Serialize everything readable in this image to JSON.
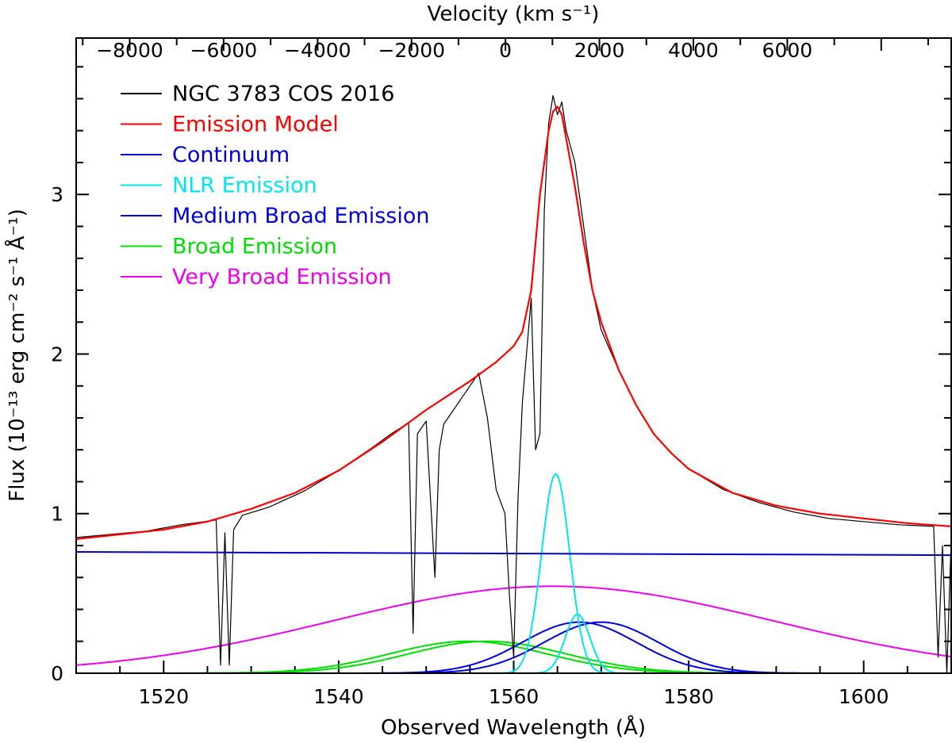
{
  "chart_data": {
    "type": "line",
    "title": "",
    "xlabel": "Observed Wavelength (Å)",
    "ylabel": "Flux (10⁻¹³ erg cm⁻² s⁻¹ Å⁻¹)",
    "top_axis_label": "Velocity (km s⁻¹)",
    "xlim": [
      1510,
      1610
    ],
    "ylim": [
      0,
      3.98
    ],
    "velocity_range": [
      -9140,
      9490
    ],
    "x_ticks": [
      1520,
      1540,
      1560,
      1580,
      1600
    ],
    "x_tick_labels": [
      "1520",
      "1540",
      "1560",
      "1580",
      "1600"
    ],
    "y_ticks": [
      0,
      1,
      2,
      3
    ],
    "y_tick_labels": [
      "0",
      "1",
      "2",
      "3"
    ],
    "velocity_ticks": [
      -8000,
      -6000,
      -4000,
      -2000,
      0,
      2000,
      4000,
      6000
    ],
    "velocity_tick_labels": [
      "−8000",
      "−6000",
      "−4000",
      "−2000",
      "0",
      "2000",
      "4000",
      "6000"
    ],
    "grid": false,
    "legend_position": "top-left",
    "legend": [
      {
        "label": "NGC 3783 COS 2016",
        "color": "#000000"
      },
      {
        "label": "Emission Model",
        "color": "#ff0000"
      },
      {
        "label": "Continuum",
        "color": "#0000cc"
      },
      {
        "label": "NLR Emission",
        "color": "#00e5ee"
      },
      {
        "label": "Medium Broad Emission",
        "color": "#0000dd"
      },
      {
        "label": "Broad Emission",
        "color": "#00dd00"
      },
      {
        "label": "Very Broad Emission",
        "color": "#ee00ee"
      }
    ],
    "series": [
      {
        "name": "NGC 3783 COS 2016",
        "color": "#000000",
        "kind": "observed_spectrum",
        "x": [
          1510,
          1514,
          1518,
          1522,
          1526,
          1526.5,
          1527,
          1527.5,
          1528,
          1529,
          1532,
          1536,
          1540,
          1544,
          1546,
          1548,
          1548.5,
          1549,
          1550,
          1551,
          1551.5,
          1552,
          1554,
          1556,
          1557,
          1558,
          1559,
          1559.5,
          1560,
          1560.5,
          1561,
          1562,
          1562.5,
          1563,
          1563.5,
          1564,
          1564.5,
          1565,
          1565.5,
          1566,
          1567,
          1568,
          1569,
          1570,
          1572,
          1574,
          1576,
          1578,
          1580,
          1584,
          1588,
          1592,
          1596,
          1600,
          1604,
          1608,
          1608.5,
          1609,
          1609.5,
          1610
        ],
        "y": [
          0.85,
          0.87,
          0.89,
          0.93,
          0.96,
          0.05,
          0.88,
          0.05,
          0.9,
          0.99,
          1.04,
          1.14,
          1.27,
          1.42,
          1.5,
          1.57,
          0.25,
          1.5,
          1.58,
          0.6,
          1.4,
          1.56,
          1.72,
          1.88,
          1.6,
          1.15,
          1.0,
          0.5,
          0.1,
          1.1,
          1.7,
          2.35,
          1.4,
          1.5,
          2.9,
          3.45,
          3.62,
          3.5,
          3.58,
          3.4,
          3.2,
          2.8,
          2.4,
          2.15,
          1.9,
          1.68,
          1.5,
          1.38,
          1.28,
          1.15,
          1.07,
          1.01,
          0.97,
          0.95,
          0.93,
          0.92,
          0.1,
          0.8,
          0.0,
          0.84
        ]
      },
      {
        "name": "Emission Model",
        "color": "#ff0000",
        "kind": "model",
        "x": [
          1510,
          1515,
          1520,
          1525,
          1530,
          1535,
          1540,
          1545,
          1550,
          1555,
          1558,
          1560,
          1561,
          1562,
          1563,
          1564,
          1564.5,
          1565,
          1565.5,
          1566,
          1567,
          1568,
          1569,
          1570,
          1572,
          1574,
          1576,
          1578,
          1580,
          1585,
          1590,
          1595,
          1600,
          1605,
          1610
        ],
        "y": [
          0.84,
          0.87,
          0.9,
          0.95,
          1.03,
          1.13,
          1.27,
          1.45,
          1.65,
          1.83,
          1.95,
          2.05,
          2.14,
          2.4,
          3.0,
          3.4,
          3.52,
          3.55,
          3.5,
          3.35,
          3.05,
          2.7,
          2.4,
          2.2,
          1.9,
          1.68,
          1.5,
          1.38,
          1.28,
          1.13,
          1.05,
          1.0,
          0.97,
          0.94,
          0.92
        ]
      },
      {
        "name": "Continuum",
        "color": "#0000cc",
        "kind": "linear",
        "x": [
          1510,
          1610
        ],
        "y": [
          0.76,
          0.74
        ]
      },
      {
        "name": "NLR Emission",
        "color": "#00e5ee",
        "kind": "gaussian",
        "components": [
          {
            "center": 1564.8,
            "amplitude": 1.25,
            "sigma": 1.6
          },
          {
            "center": 1567.3,
            "amplitude": 0.37,
            "sigma": 1.4
          }
        ]
      },
      {
        "name": "Medium Broad Emission",
        "color": "#0000dd",
        "kind": "gaussian",
        "components": [
          {
            "center": 1567.5,
            "amplitude": 0.32,
            "sigma": 6.5
          },
          {
            "center": 1570.0,
            "amplitude": 0.32,
            "sigma": 6.5
          }
        ]
      },
      {
        "name": "Broad Emission",
        "color": "#00dd00",
        "kind": "gaussian",
        "components": [
          {
            "center": 1554.8,
            "amplitude": 0.2,
            "sigma": 9.0
          },
          {
            "center": 1557.0,
            "amplitude": 0.2,
            "sigma": 9.0
          }
        ]
      },
      {
        "name": "Very Broad Emission",
        "color": "#ee00ee",
        "kind": "gaussian",
        "components": [
          {
            "center": 1564.5,
            "amplitude": 0.545,
            "sigma": 25.0
          }
        ]
      }
    ]
  }
}
